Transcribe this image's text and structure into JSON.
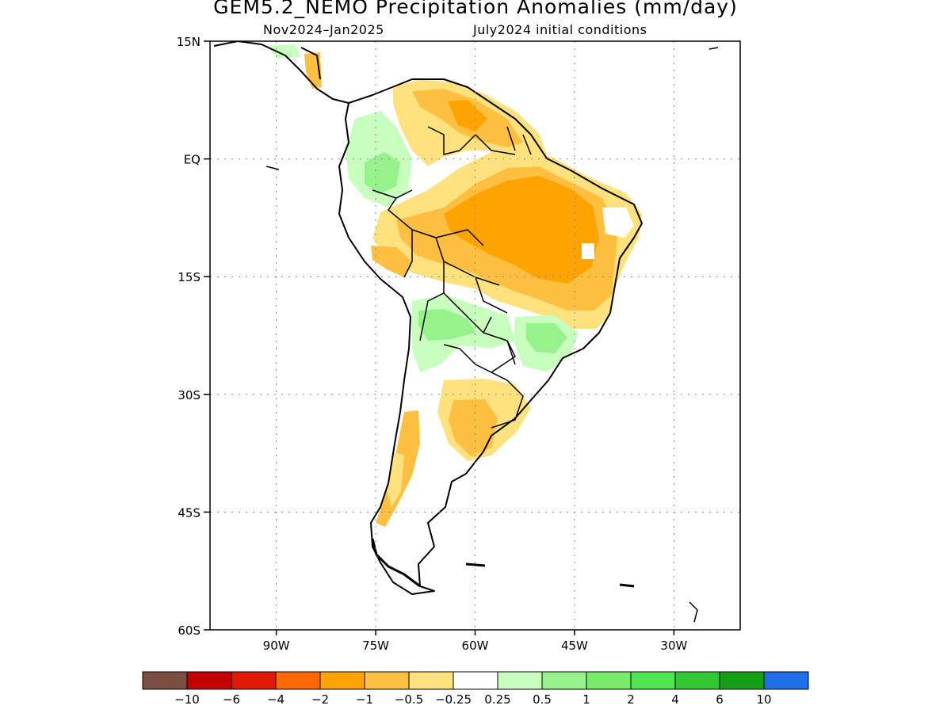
{
  "header": {
    "title": "GEM5.2_NEMO Precipitation Anomalies (mm/day)",
    "period": "Nov2024–Jan2025",
    "init": "July2024 initial conditions"
  },
  "map": {
    "lat_ticks": [
      "15N",
      "EQ",
      "15S",
      "30S",
      "45S",
      "60S"
    ],
    "lon_ticks": [
      "90W",
      "75W",
      "60W",
      "45W",
      "30W"
    ],
    "lat_values": [
      15,
      0,
      -15,
      -30,
      -45,
      -60
    ],
    "lon_values": [
      -90,
      -75,
      -60,
      -45,
      -30
    ],
    "lon_range": [
      -100,
      -20
    ],
    "lat_range": [
      -60,
      15
    ],
    "grid": true
  },
  "legend": {
    "colors": [
      "#7b4e42",
      "#c20000",
      "#e01a00",
      "#ff6a00",
      "#ffa300",
      "#ffbf40",
      "#ffe27d",
      "#ffffff",
      "#c8ffbf",
      "#96f28a",
      "#78eb6a",
      "#4fe64f",
      "#32c832",
      "#14a014",
      "#1e6ee6"
    ],
    "labels": [
      "−10",
      "−6",
      "−4",
      "−2",
      "−1",
      "−0.5",
      "−0.25",
      "0.25",
      "0.5",
      "1",
      "2",
      "4",
      "6",
      "10"
    ]
  },
  "palette": {
    "dry_light": "#ffe27d",
    "dry_mid": "#ffbf40",
    "dry_strong": "#ffa300",
    "dry_very": "#ff6a00",
    "wet_light": "#c8ffbf",
    "wet_mid": "#96f28a"
  }
}
